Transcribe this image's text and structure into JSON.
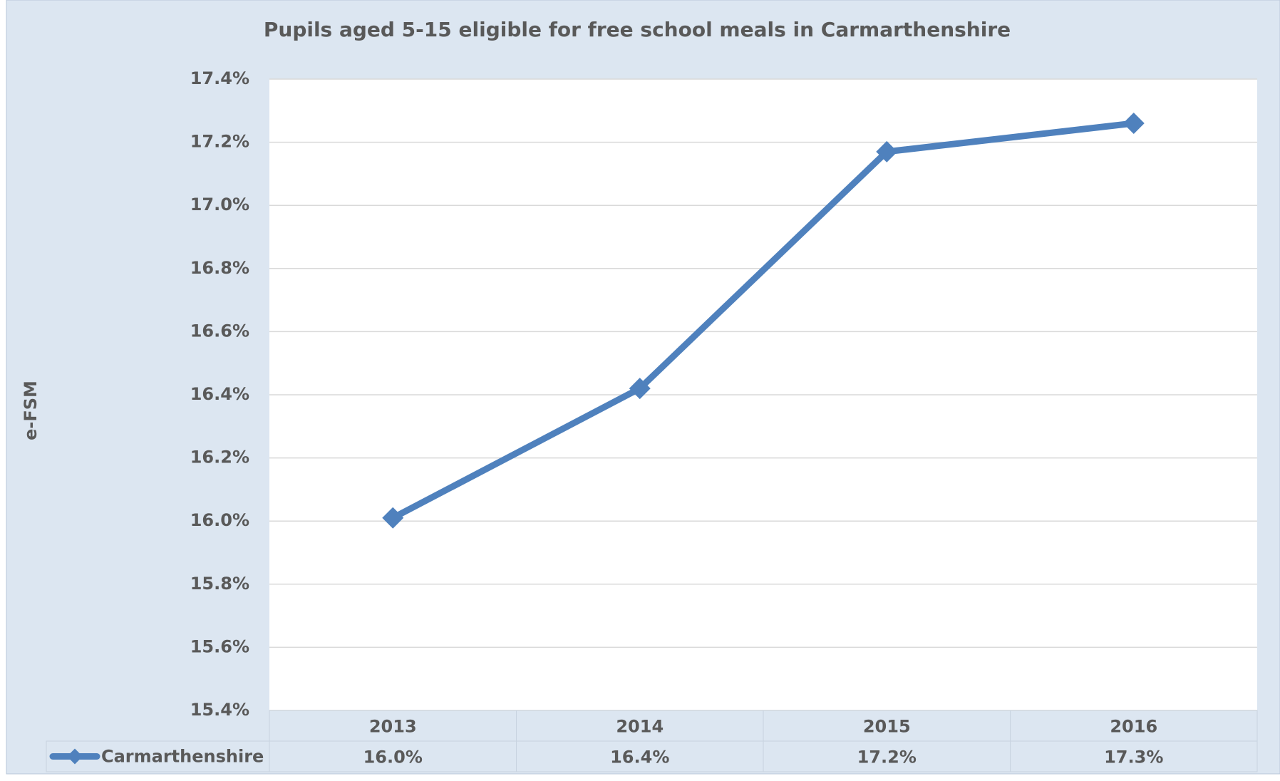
{
  "chart_data": {
    "type": "line",
    "title": "Pupils aged 5-15 eligible for free school meals in Carmarthenshire",
    "y_label": "e-FSM",
    "categories": [
      "2013",
      "2014",
      "2015",
      "2016"
    ],
    "series": [
      {
        "name": "Carmarthenshire",
        "color": "#4f81bd",
        "values": [
          16.01,
          16.42,
          17.17,
          17.26
        ],
        "value_labels": [
          "16.0%",
          "16.4%",
          "17.2%",
          "17.3%"
        ]
      }
    ],
    "ylim": [
      15.4,
      17.4
    ],
    "yticks": [
      {
        "value": 15.4,
        "label": "15.4%"
      },
      {
        "value": 15.6,
        "label": "15.6%"
      },
      {
        "value": 15.8,
        "label": "15.8%"
      },
      {
        "value": 16.0,
        "label": "16.0%"
      },
      {
        "value": 16.2,
        "label": "16.2%"
      },
      {
        "value": 16.4,
        "label": "16.4%"
      },
      {
        "value": 16.6,
        "label": "16.6%"
      },
      {
        "value": 16.8,
        "label": "16.8%"
      },
      {
        "value": 17.0,
        "label": "17.0%"
      },
      {
        "value": 17.2,
        "label": "17.2%"
      },
      {
        "value": 17.4,
        "label": "17.4%"
      }
    ],
    "grid": true,
    "data_table": true
  }
}
